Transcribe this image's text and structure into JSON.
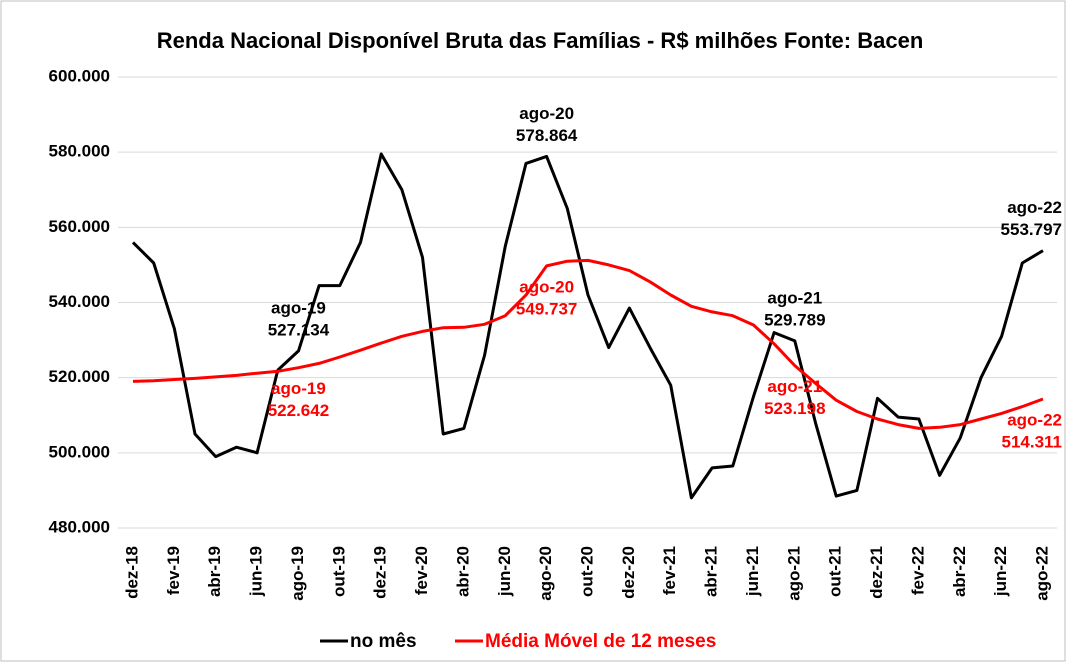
{
  "chart_data": {
    "type": "line",
    "title": "Renda Nacional Disponível Bruta das Famílias  - R$ milhões Fonte: Bacen",
    "categories": [
      "dez-18",
      null,
      "fev-19",
      null,
      "abr-19",
      null,
      "jun-19",
      null,
      "ago-19",
      null,
      "out-19",
      null,
      "dez-19",
      null,
      "fev-20",
      null,
      "abr-20",
      null,
      "jun-20",
      null,
      "ago-20",
      null,
      "out-20",
      null,
      "dez-20",
      null,
      "fev-21",
      null,
      "abr-21",
      null,
      "jun-21",
      null,
      "ago-21",
      null,
      "out-21",
      null,
      "dez-21",
      null,
      "fev-22",
      null,
      "abr-22",
      null,
      "jun-22",
      null,
      "ago-22"
    ],
    "series": [
      {
        "name": "no mês",
        "color": "#000000",
        "values": [
          556000,
          550500,
          533000,
          505000,
          499000,
          501500,
          500000,
          522000,
          527134,
          544500,
          544500,
          556000,
          579500,
          570000,
          552000,
          505000,
          506500,
          526000,
          555000,
          577000,
          578864,
          565000,
          542000,
          528000,
          538500,
          528000,
          518000,
          488000,
          496000,
          496500,
          515000,
          532000,
          529789,
          508000,
          488500,
          490000,
          514500,
          509500,
          509000,
          494000,
          504000,
          520000,
          531000,
          550500,
          553797
        ],
        "value_labels": [
          null,
          null,
          null,
          null,
          null,
          null,
          null,
          null,
          "527.134",
          null,
          null,
          null,
          null,
          null,
          null,
          null,
          null,
          null,
          null,
          null,
          "578.864",
          null,
          null,
          null,
          null,
          null,
          null,
          null,
          null,
          null,
          null,
          null,
          "529.789",
          null,
          null,
          null,
          null,
          null,
          null,
          null,
          null,
          null,
          null,
          null,
          "553.797"
        ]
      },
      {
        "name": "Média Móvel de 12 meses",
        "color": "#ff0000",
        "values": [
          519000,
          519200,
          519500,
          519800,
          520200,
          520600,
          521200,
          521700,
          522642,
          523800,
          525500,
          527300,
          529200,
          531000,
          532300,
          533300,
          533400,
          534200,
          536500,
          542000,
          549737,
          551000,
          551200,
          550000,
          548500,
          545500,
          542000,
          539000,
          537500,
          536500,
          534000,
          529000,
          523198,
          518500,
          514000,
          511000,
          509000,
          507500,
          506500,
          506800,
          507500,
          509000,
          510500,
          512300,
          514311
        ],
        "value_labels": [
          null,
          null,
          null,
          null,
          null,
          null,
          null,
          null,
          "522.642",
          null,
          null,
          null,
          null,
          null,
          null,
          null,
          null,
          null,
          null,
          null,
          "549.737",
          null,
          null,
          null,
          null,
          null,
          null,
          null,
          null,
          null,
          null,
          null,
          "523.198",
          null,
          null,
          null,
          null,
          null,
          null,
          null,
          null,
          null,
          null,
          null,
          "514.311"
        ]
      }
    ],
    "ylim": [
      480000,
      600000
    ],
    "yticks": [
      {
        "value": 480000,
        "label": "480.000"
      },
      {
        "value": 500000,
        "label": "500.000"
      },
      {
        "value": 520000,
        "label": "520.000"
      },
      {
        "value": 540000,
        "label": "540.000"
      },
      {
        "value": 560000,
        "label": "560.000"
      },
      {
        "value": 580000,
        "label": "580.000"
      },
      {
        "value": 600000,
        "label": "600.000"
      }
    ],
    "grid": true,
    "legend": "bottom"
  }
}
